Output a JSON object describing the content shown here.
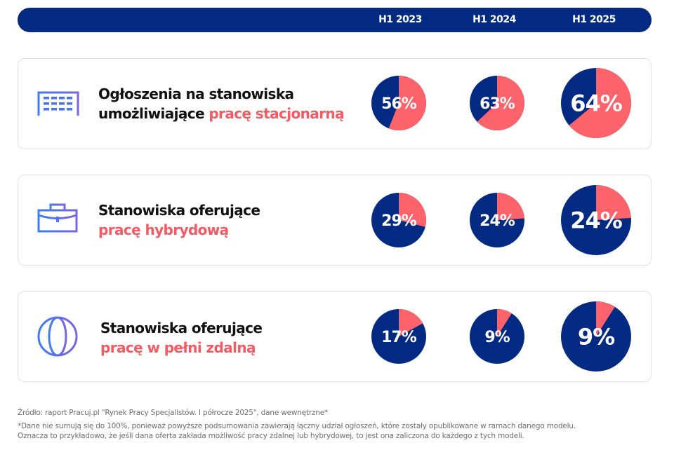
{
  "header": {
    "columns": [
      "H1 2023",
      "H1 2024",
      "H1 2025"
    ]
  },
  "colors": {
    "navy": "#032a82",
    "coral": "#fc636b",
    "accent_text": "#f25a64"
  },
  "rows": [
    {
      "icon": "office-building-icon",
      "title_line1": "Ogłoszenia na stanowiska",
      "title_line2_prefix": "umożliwiające ",
      "title_line2_accent": "pracę stacjonarną",
      "labels": [
        "56%",
        "63%",
        "64%"
      ]
    },
    {
      "icon": "briefcase-icon",
      "title_line1": "Stanowiska oferujące",
      "title_line2_prefix": "",
      "title_line2_accent": "pracę hybrydową",
      "labels": [
        "29%",
        "24%",
        "24%"
      ]
    },
    {
      "icon": "globe-icon",
      "title_line1": "Stanowiska oferujące",
      "title_line2_prefix": "",
      "title_line2_accent": "pracę w pełni zdalną",
      "labels": [
        "17%",
        "9%",
        "9%"
      ]
    }
  ],
  "chart_data": {
    "type": "pie",
    "title": "",
    "categories": [
      "H1 2023",
      "H1 2024",
      "H1 2025"
    ],
    "series": [
      {
        "name": "Ogłoszenia na stanowiska umożliwiające pracę stacjonarną",
        "values": [
          56,
          63,
          64
        ]
      },
      {
        "name": "Stanowiska oferujące pracę hybrydową",
        "values": [
          29,
          24,
          24
        ]
      },
      {
        "name": "Stanowiska oferujące pracę w pełni zdalną",
        "values": [
          17,
          9,
          9
        ]
      }
    ],
    "unit": "%",
    "highlight_color": "#fc636b",
    "remainder_color": "#032a82"
  },
  "footer": {
    "source": "Źródło: raport Pracuj.pl \"Rynek Pracy Specjalistów. I półrocze 2025\", dane wewnętrzne*",
    "note_line1": "*Dane nie sumują się do 100%, ponieważ powyższe podsumowania zawierają łączny udział ogłoszeń, które zostały opublikowane w ramach danego modelu.",
    "note_line2": "Oznacza to przykładowo, że jeśli dana oferta zakłada możliwość pracy zdalnej lub hybrydowej, to jest ona zaliczona do każdego z tych modeli."
  }
}
